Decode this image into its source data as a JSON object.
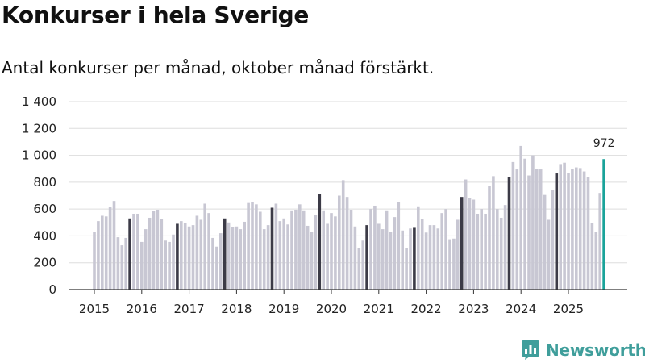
{
  "header": {
    "title": "Konkurser i hela Sverige",
    "subtitle": "Antal konkurser per månad, oktober månad förstärkt."
  },
  "brand": {
    "name": "Newsworthy",
    "icon": "newsworthy-logo-icon"
  },
  "colors": {
    "normal": "#c8c7d3",
    "october": "#3c3b47",
    "latest": "#1aa39a",
    "grid": "#dddddd",
    "axis": "#333333"
  },
  "chart_data": {
    "type": "bar",
    "title": "Konkurser i hela Sverige",
    "subtitle": "Antal konkurser per månad, oktober månad förstärkt.",
    "xlabel": "",
    "ylabel": "",
    "ylim": [
      0,
      1400
    ],
    "yticks": [
      0,
      200,
      400,
      600,
      800,
      1000,
      1200,
      1400
    ],
    "ytick_labels": [
      "0",
      "200",
      "400",
      "600",
      "800",
      "1 000",
      "1 200",
      "1 400"
    ],
    "years": [
      "2015",
      "2016",
      "2017",
      "2018",
      "2019",
      "2020",
      "2021",
      "2022",
      "2023",
      "2024",
      "2025"
    ],
    "start": "2015-01",
    "highlight_month": 10,
    "annotation": {
      "label": "972",
      "value": 972
    },
    "values": [
      430,
      510,
      550,
      545,
      615,
      660,
      390,
      330,
      385,
      530,
      565,
      565,
      355,
      450,
      535,
      585,
      595,
      525,
      365,
      355,
      410,
      490,
      510,
      495,
      470,
      480,
      550,
      520,
      640,
      570,
      385,
      320,
      420,
      530,
      500,
      465,
      470,
      450,
      505,
      645,
      650,
      635,
      580,
      450,
      480,
      610,
      640,
      510,
      530,
      485,
      590,
      595,
      635,
      590,
      475,
      430,
      555,
      710,
      590,
      490,
      570,
      545,
      700,
      815,
      690,
      595,
      470,
      310,
      365,
      480,
      600,
      625,
      490,
      450,
      590,
      430,
      540,
      650,
      440,
      310,
      455,
      460,
      620,
      525,
      425,
      480,
      480,
      455,
      570,
      600,
      375,
      380,
      520,
      690,
      820,
      685,
      670,
      565,
      600,
      565,
      770,
      845,
      600,
      535,
      630,
      840,
      950,
      895,
      1070,
      975,
      850,
      1000,
      900,
      895,
      705,
      520,
      745,
      865,
      935,
      945,
      870,
      900,
      910,
      905,
      880,
      840,
      495,
      430,
      720,
      972
    ]
  }
}
